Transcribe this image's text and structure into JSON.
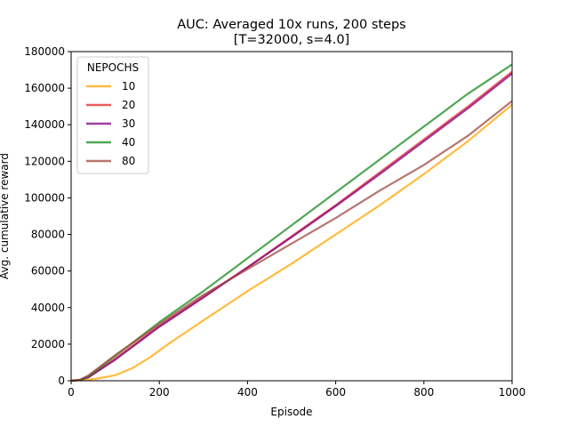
{
  "chart_data": {
    "type": "line",
    "title": "AUC: Averaged 10x runs, 200 steps",
    "subtitle": "[T=32000, s=4.0]",
    "xlabel": "Episode",
    "ylabel": "Avg. cumulative reward",
    "xlim": [
      0,
      1000
    ],
    "ylim": [
      0,
      180000
    ],
    "xticks": [
      0,
      200,
      400,
      600,
      800,
      1000
    ],
    "yticks": [
      0,
      20000,
      40000,
      60000,
      80000,
      100000,
      120000,
      140000,
      160000,
      180000
    ],
    "grid": false,
    "legend": {
      "title": "NEPOCHS",
      "placement": "top-left"
    },
    "series": [
      {
        "name": "10",
        "color": "#ffa500",
        "points": [
          [
            0,
            0
          ],
          [
            30,
            300
          ],
          [
            60,
            1200
          ],
          [
            100,
            3000
          ],
          [
            140,
            7000
          ],
          [
            180,
            13000
          ],
          [
            220,
            20000
          ],
          [
            300,
            33000
          ],
          [
            400,
            49000
          ],
          [
            500,
            64000
          ],
          [
            600,
            80000
          ],
          [
            700,
            96000
          ],
          [
            800,
            113000
          ],
          [
            900,
            131000
          ],
          [
            1000,
            151000
          ]
        ]
      },
      {
        "name": "20",
        "color": "#e8272b",
        "points": [
          [
            0,
            0
          ],
          [
            20,
            400
          ],
          [
            40,
            2000
          ],
          [
            100,
            12000
          ],
          [
            200,
            30000
          ],
          [
            300,
            46000
          ],
          [
            400,
            62000
          ],
          [
            500,
            79000
          ],
          [
            600,
            96000
          ],
          [
            700,
            114000
          ],
          [
            800,
            132000
          ],
          [
            900,
            150000
          ],
          [
            1000,
            169000
          ]
        ]
      },
      {
        "name": "30",
        "color": "#800080",
        "points": [
          [
            0,
            0
          ],
          [
            20,
            400
          ],
          [
            40,
            2000
          ],
          [
            100,
            11500
          ],
          [
            200,
            29500
          ],
          [
            300,
            45500
          ],
          [
            400,
            62000
          ],
          [
            500,
            78500
          ],
          [
            600,
            95500
          ],
          [
            700,
            113000
          ],
          [
            800,
            131000
          ],
          [
            900,
            149000
          ],
          [
            1000,
            168000
          ]
        ]
      },
      {
        "name": "40",
        "color": "#16891b",
        "points": [
          [
            0,
            0
          ],
          [
            20,
            400
          ],
          [
            40,
            2500
          ],
          [
            100,
            13500
          ],
          [
            200,
            32000
          ],
          [
            300,
            49000
          ],
          [
            400,
            67000
          ],
          [
            500,
            85000
          ],
          [
            600,
            103000
          ],
          [
            700,
            121000
          ],
          [
            800,
            139000
          ],
          [
            900,
            157000
          ],
          [
            1000,
            173000
          ]
        ]
      },
      {
        "name": "80",
        "color": "#a0473f",
        "points": [
          [
            0,
            0
          ],
          [
            20,
            600
          ],
          [
            40,
            3000
          ],
          [
            100,
            14000
          ],
          [
            200,
            31000
          ],
          [
            300,
            47000
          ],
          [
            400,
            61000
          ],
          [
            500,
            75000
          ],
          [
            600,
            89000
          ],
          [
            700,
            104000
          ],
          [
            800,
            118000
          ],
          [
            900,
            134000
          ],
          [
            1000,
            153000
          ]
        ]
      }
    ]
  }
}
